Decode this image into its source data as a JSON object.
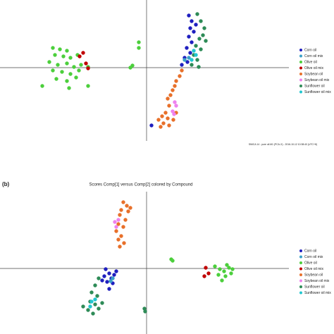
{
  "chart_data": [
    {
      "type": "scatter",
      "footer": "SIMCA 14 - pure oil.M1 (PCA-X) - 2016-10-12 10:38:40 (UTC+8)",
      "xlim": [
        -10.4,
        10.1
      ],
      "ylim": [
        -5.2,
        4.8
      ],
      "legend": "right",
      "series": [
        {
          "name": "Corn oil",
          "color": "#1f1fbf",
          "x": [
            3.0,
            3.2,
            3.1,
            3.35,
            3.0,
            3.2,
            2.85,
            3.1,
            2.7,
            2.9,
            2.5,
            3.5,
            0.35
          ],
          "y": [
            3.7,
            3.3,
            2.8,
            2.55,
            2.2,
            1.8,
            1.4,
            1.05,
            0.7,
            0.4,
            0.2,
            3.05,
            -4.1
          ]
        },
        {
          "name": "Corn oil mix",
          "color": "#3aa0c8",
          "x": [
            2.7,
            3.0
          ],
          "y": [
            0.55,
            0.7
          ]
        },
        {
          "name": "Olive oil",
          "color": "#4ccf3c",
          "x": [
            -6.65,
            -6.15,
            -5.65,
            -6.5,
            -5.9,
            -5.4,
            -4.9,
            -6.9,
            -6.3,
            -5.65,
            -5.15,
            -4.65,
            -6.65,
            -6.0,
            -5.4,
            -4.8,
            -4.15,
            -6.4,
            -5.65,
            -5.0,
            -7.4,
            -5.5,
            -4.15,
            -1.15,
            -1.0,
            -0.55,
            -0.55
          ],
          "y": [
            1.4,
            1.3,
            1.2,
            0.9,
            0.8,
            0.7,
            0.9,
            0.4,
            0.2,
            0.3,
            0.05,
            0.2,
            -0.2,
            -0.3,
            -0.45,
            -0.2,
            0.05,
            -0.8,
            -0.95,
            -0.7,
            -1.3,
            -1.45,
            -1.3,
            0,
            0.15,
            1.8,
            1.4
          ]
        },
        {
          "name": "Olive oil mix",
          "color": "#c00000",
          "x": [
            -4.5,
            -4.3,
            -4.15,
            -4.75
          ],
          "y": [
            1.05,
            0.3,
            -0.05,
            0.8
          ]
        },
        {
          "name": "Soybean oil",
          "color": "#e8702a",
          "x": [
            2.5,
            2.35,
            2.1,
            2.0,
            1.85,
            1.7,
            1.5,
            1.6,
            1.35,
            1.1,
            1.5,
            0.85,
            1.2,
            1.0,
            1.6,
            1.9,
            2.1
          ],
          "y": [
            -0.2,
            -0.6,
            -0.95,
            -1.3,
            -1.6,
            -1.95,
            -2.2,
            -2.7,
            -3.2,
            -3.45,
            -3.6,
            -3.7,
            -3.95,
            -4.2,
            -4.1,
            -3.7,
            -3.2
          ]
        },
        {
          "name": "Soybean oil mix",
          "color": "#ee82ee",
          "x": [
            2.0,
            2.1,
            1.85,
            1.95
          ],
          "y": [
            -2.45,
            -2.7,
            -3.1,
            -3.3
          ]
        },
        {
          "name": "Sunflower oil",
          "color": "#2e8b57",
          "x": [
            3.6,
            3.85,
            4.1,
            4.0,
            3.75,
            4.2,
            3.5,
            3.85,
            3.35,
            3.6,
            3.2,
            3.7
          ],
          "y": [
            3.8,
            3.3,
            2.8,
            2.3,
            2.05,
            1.9,
            1.55,
            1.3,
            0.9,
            0.55,
            0.2,
            0.05
          ]
        },
        {
          "name": "Sunflower oil mix",
          "color": "#22c7d0",
          "x": [
            3.35,
            3.5,
            3.2
          ],
          "y": [
            1.2,
            0.9,
            0.55
          ]
        }
      ]
    },
    {
      "type": "scatter",
      "label": "(b)",
      "title": "Scores Comp[1] versus Comp[2] colored by Compound",
      "xlim": [
        -10.4,
        10.1
      ],
      "ylim": [
        -4.65,
        5.45
      ],
      "legend": "right",
      "series": [
        {
          "name": "Corn oil",
          "color": "#1f1fbf",
          "x": [
            -2.9,
            -2.65,
            -3.0,
            -2.5,
            -2.8,
            -2.4,
            -3.15,
            -2.3,
            -2.65,
            -2.15
          ],
          "y": [
            -0.05,
            -0.35,
            -0.55,
            -0.7,
            -0.95,
            -1.05,
            -0.85,
            -0.45,
            -1.45,
            -0.2
          ]
        },
        {
          "name": "Corn oil mix",
          "color": "#3aa0c8",
          "x": [
            -2.4,
            -2.55
          ],
          "y": [
            -0.7,
            -0.9
          ]
        },
        {
          "name": "Olive oil",
          "color": "#4ccf3c",
          "x": [
            4.85,
            5.2,
            5.5,
            5.85,
            5.1,
            5.6,
            6.0,
            5.35,
            5.7,
            6.1,
            1.75,
            1.85
          ],
          "y": [
            0.15,
            -0.05,
            -0.2,
            0.05,
            -0.45,
            -0.55,
            -0.35,
            -0.85,
            0.25,
            -0.05,
            0.65,
            0.55
          ]
        },
        {
          "name": "Olive oil mix",
          "color": "#c00000",
          "x": [
            4.2,
            4.4,
            4.1
          ],
          "y": [
            0.05,
            -0.35,
            -0.55
          ]
        },
        {
          "name": "Soybean oil",
          "color": "#e8702a",
          "x": [
            -1.65,
            -1.4,
            -1.8,
            -1.3,
            -1.9,
            -1.5,
            -2.0,
            -1.65,
            -2.15,
            -1.8,
            -2.0,
            -1.6,
            -1.9,
            -1.15
          ],
          "y": [
            4.7,
            4.45,
            4.15,
            4.05,
            3.8,
            3.45,
            3.15,
            2.95,
            2.65,
            2.3,
            2.05,
            1.8,
            1.55,
            4.3
          ]
        },
        {
          "name": "Soybean oil mix",
          "color": "#ee82ee",
          "x": [
            -2.25,
            -2.15,
            -2.0
          ],
          "y": [
            3.3,
            2.95,
            3.45
          ]
        },
        {
          "name": "Sunflower oil",
          "color": "#2e8b57",
          "x": [
            -3.4,
            -3.65,
            -3.9,
            -3.5,
            -4.0,
            -3.65,
            -4.15,
            -3.8,
            -4.5,
            -3.4,
            -3.15,
            -0.15,
            -0.1
          ],
          "y": [
            -0.7,
            -1.2,
            -1.7,
            -1.95,
            -2.35,
            -2.55,
            -2.95,
            -3.2,
            -2.7,
            -2.85,
            -2.45,
            -2.85,
            -3.05
          ]
        },
        {
          "name": "Sunflower oil mix",
          "color": "#22c7d0",
          "x": [
            -3.9,
            -4.0,
            -3.65
          ],
          "y": [
            -2.35,
            -2.7,
            -2.2
          ]
        }
      ]
    }
  ]
}
